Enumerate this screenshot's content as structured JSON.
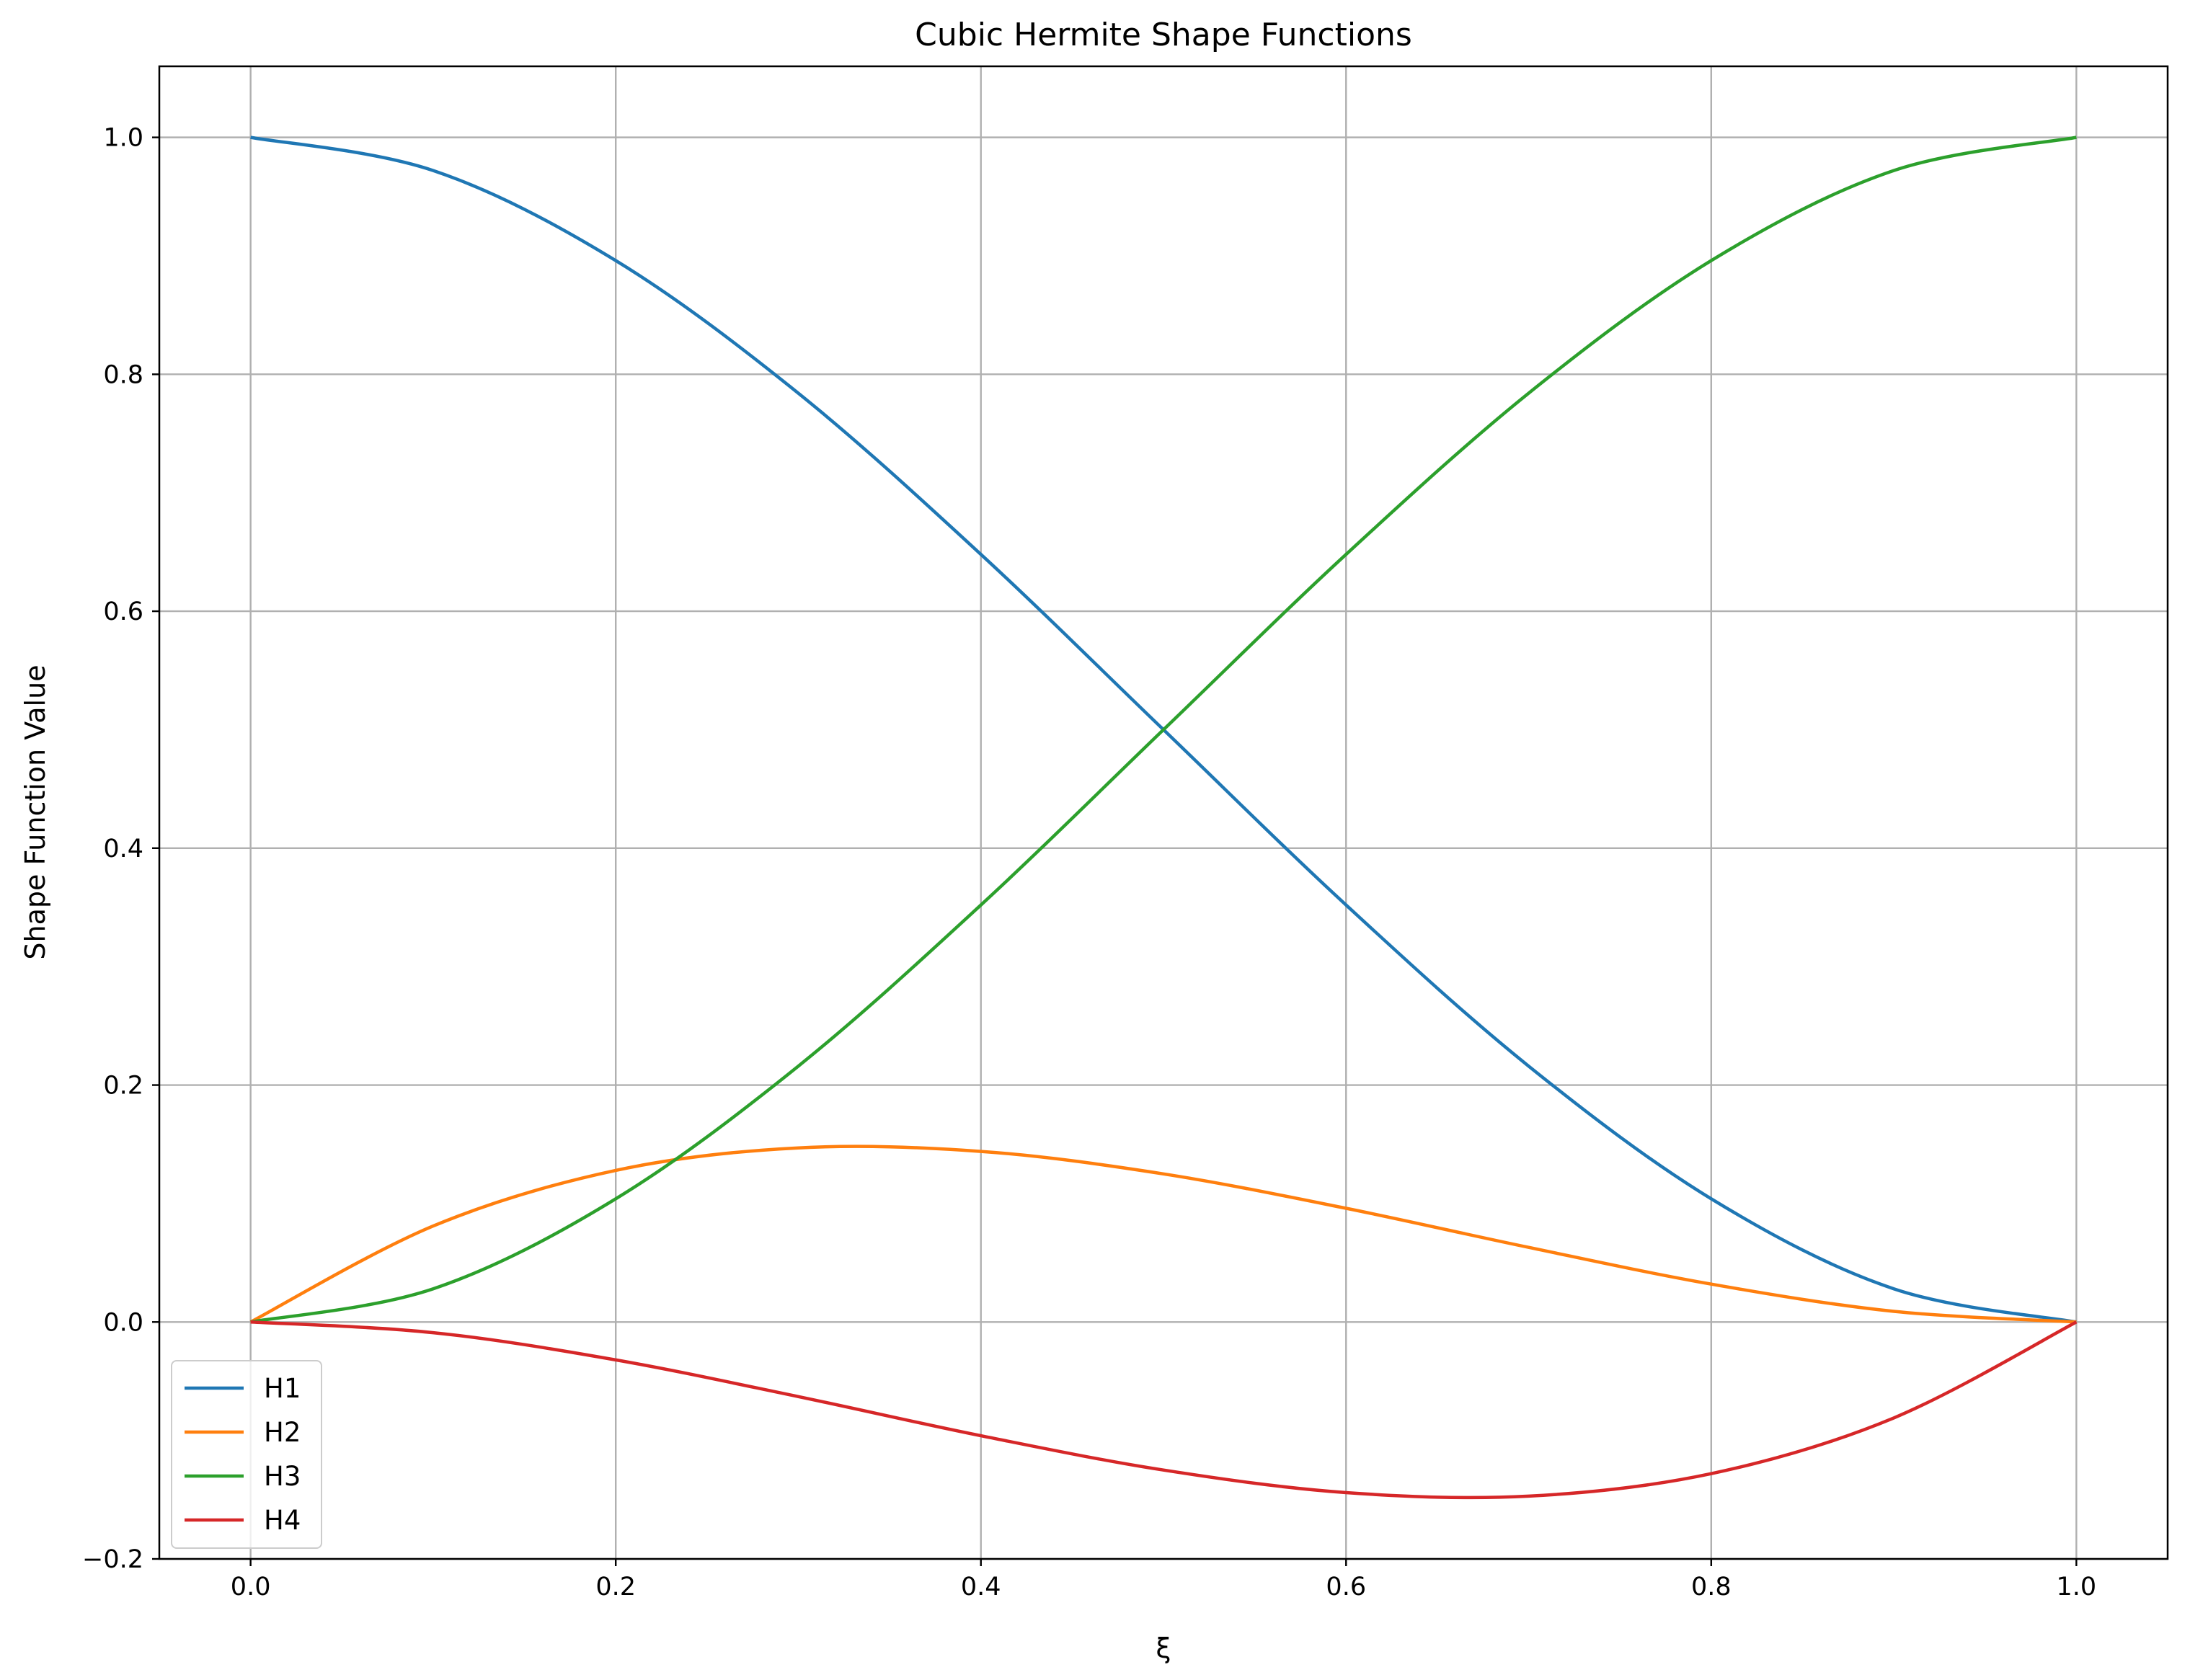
{
  "chart_data": {
    "type": "line",
    "title": "Cubic Hermite Shape Functions",
    "xlabel": "ξ",
    "ylabel": "Shape Function Value",
    "xlim": [
      -0.05,
      1.05
    ],
    "ylim": [
      -0.2,
      1.06
    ],
    "grid": true,
    "legend_position": "lower-left",
    "x_ticks": [
      "0.0",
      "0.2",
      "0.4",
      "0.6",
      "0.8",
      "1.0"
    ],
    "y_ticks": [
      "−0.2",
      "0.0",
      "0.2",
      "0.4",
      "0.6",
      "0.8",
      "1.0"
    ],
    "x": [
      0.0,
      0.1,
      0.2,
      0.3,
      0.4,
      0.5,
      0.6,
      0.7,
      0.8,
      0.9,
      1.0
    ],
    "series": [
      {
        "name": "H1",
        "color": "#1f77b4",
        "values": [
          1.0,
          0.972,
          0.896,
          0.784,
          0.648,
          0.5,
          0.352,
          0.216,
          0.104,
          0.028,
          0.0
        ]
      },
      {
        "name": "H2",
        "color": "#ff7f0e",
        "values": [
          0.0,
          0.081,
          0.128,
          0.147,
          0.144,
          0.125,
          0.096,
          0.063,
          0.032,
          0.009,
          0.0
        ]
      },
      {
        "name": "H3",
        "color": "#2ca02c",
        "values": [
          0.0,
          0.028,
          0.104,
          0.216,
          0.352,
          0.5,
          0.648,
          0.784,
          0.896,
          0.972,
          1.0
        ]
      },
      {
        "name": "H4",
        "color": "#d62728",
        "values": [
          0.0,
          -0.009,
          -0.032,
          -0.063,
          -0.096,
          -0.125,
          -0.144,
          -0.147,
          -0.128,
          -0.081,
          0.0
        ]
      }
    ]
  }
}
